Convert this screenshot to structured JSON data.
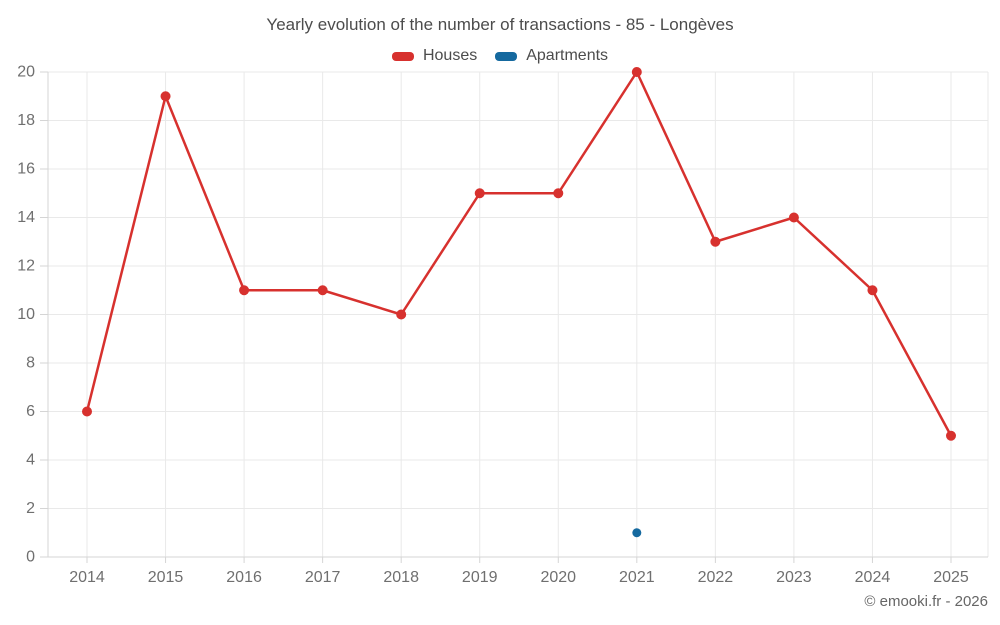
{
  "chart_data": {
    "type": "line",
    "title": "Yearly evolution of the number of transactions - 85 - Longèves",
    "categories": [
      "2014",
      "2015",
      "2016",
      "2017",
      "2018",
      "2019",
      "2020",
      "2021",
      "2022",
      "2023",
      "2024",
      "2025"
    ],
    "series": [
      {
        "name": "Houses",
        "color": "#d7312e",
        "values": [
          6,
          19,
          11,
          11,
          10,
          15,
          15,
          20,
          13,
          14,
          11,
          5
        ]
      },
      {
        "name": "Apartments",
        "color": "#15699f",
        "values": [
          null,
          null,
          null,
          null,
          null,
          null,
          null,
          1,
          null,
          null,
          null,
          null
        ]
      }
    ],
    "ylim": [
      0,
      20
    ],
    "ytick_step": 2,
    "grid": true,
    "legend_position": "top",
    "xlabel": "",
    "ylabel": ""
  },
  "footer": {
    "copyright": "© emooki.fr - 2026"
  }
}
